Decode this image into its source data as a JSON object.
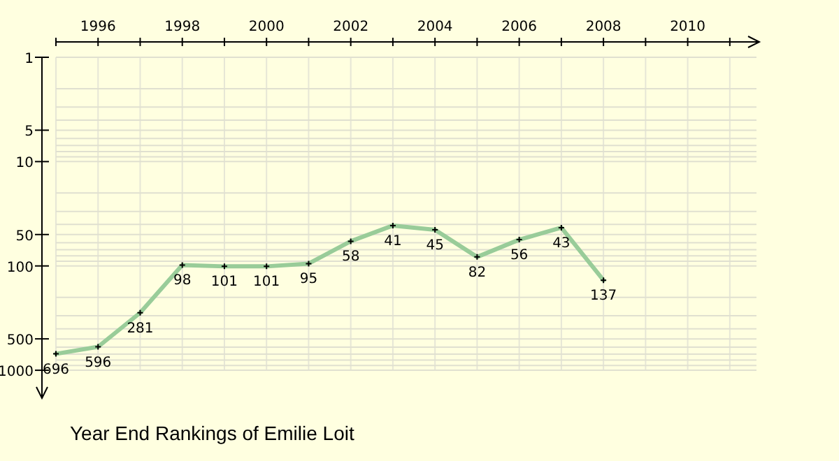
{
  "chart_data": {
    "type": "line",
    "title": "Year End Rankings of Emilie Loit",
    "x": [
      1995,
      1996,
      1997,
      1998,
      1999,
      2000,
      2001,
      2002,
      2003,
      2004,
      2005,
      2006,
      2007,
      2008
    ],
    "series": [
      {
        "color": "#99cc99",
        "values": [
          696,
          596,
          281,
          98,
          101,
          101,
          95,
          58,
          41,
          45,
          82,
          56,
          43,
          137
        ]
      }
    ],
    "xlim": [
      1995,
      2011.7
    ],
    "xticks": [
      {
        "value": 1995,
        "label": null
      },
      1996,
      {
        "value": 1997,
        "label": null
      },
      1998,
      {
        "value": 1999,
        "label": null
      },
      2000,
      {
        "value": 2001,
        "label": null
      },
      2002,
      {
        "value": 2003,
        "label": null
      },
      2004,
      {
        "value": 2005,
        "label": null
      },
      2006,
      {
        "value": 2007,
        "label": null
      },
      2008,
      {
        "value": 2009,
        "label": null
      },
      2010,
      {
        "value": 2011,
        "label": null
      }
    ],
    "ylim": [
      1850,
      1
    ],
    "yticks": [
      1,
      {
        "value": 2,
        "label": null
      },
      {
        "value": 3,
        "label": null
      },
      {
        "value": 4,
        "label": null
      },
      5,
      {
        "value": 6,
        "label": null
      },
      {
        "value": 7,
        "label": null
      },
      {
        "value": 8,
        "label": null
      },
      {
        "value": 9,
        "label": null
      },
      10,
      {
        "value": 20,
        "label": null
      },
      {
        "value": 30,
        "label": null
      },
      {
        "value": 40,
        "label": null
      },
      50,
      {
        "value": 60,
        "label": null
      },
      {
        "value": 70,
        "label": null
      },
      {
        "value": 80,
        "label": null
      },
      {
        "value": 90,
        "label": null
      },
      100,
      {
        "value": 200,
        "label": null
      },
      {
        "value": 300,
        "label": null
      },
      {
        "value": 400,
        "label": null
      },
      500,
      {
        "value": 600,
        "label": null
      },
      {
        "value": 700,
        "label": null
      },
      {
        "value": 800,
        "label": null
      },
      {
        "value": 900,
        "label": null
      },
      1000
    ],
    "log": "y",
    "grid": true,
    "marker": "cross",
    "line_style": "solid",
    "data_labels": true
  }
}
